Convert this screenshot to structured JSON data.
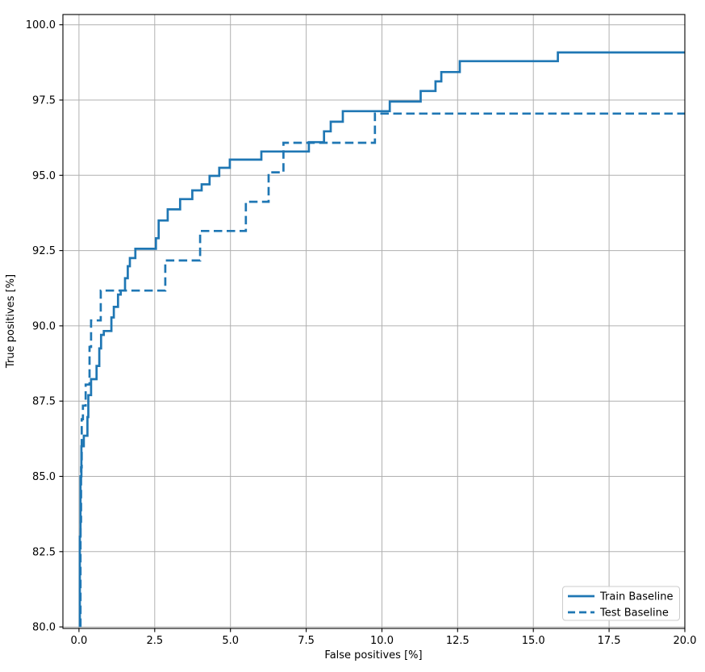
{
  "chart_data": {
    "type": "line",
    "subtype": "step_roc_curve",
    "title": "",
    "xlabel": "False positives [%]",
    "ylabel": "True positives [%]",
    "grid": true,
    "legend_position": "lower right",
    "axis": {
      "xlim": [
        -0.53,
        20.0
      ],
      "ylim": [
        79.95,
        100.34
      ],
      "x_ticks": [
        0.0,
        2.5,
        5.0,
        7.5,
        10.0,
        12.5,
        15.0,
        17.5,
        20.0
      ],
      "x_tick_labels": [
        "0.0",
        "2.5",
        "5.0",
        "7.5",
        "10.0",
        "12.5",
        "15.0",
        "17.5",
        "20.0"
      ],
      "y_ticks": [
        80.0,
        82.5,
        85.0,
        87.5,
        90.0,
        92.5,
        95.0,
        97.5,
        100.0
      ],
      "y_tick_labels": [
        "80.0",
        "82.5",
        "85.0",
        "87.5",
        "90.0",
        "92.5",
        "95.0",
        "97.5",
        "100.0"
      ]
    },
    "colors": {
      "line": "#1f77b4",
      "grid": "#b0b0b0",
      "spine": "#000000",
      "legend_border": "#cccccc",
      "background": "#ffffff"
    },
    "series": [
      {
        "name": "Train Baseline",
        "style": "solid",
        "points": [
          [
            0.03,
            80.0
          ],
          [
            0.03,
            83.0
          ],
          [
            0.05,
            83.0
          ],
          [
            0.05,
            85.0
          ],
          [
            0.08,
            85.0
          ],
          [
            0.08,
            86.0
          ],
          [
            0.16,
            86.0
          ],
          [
            0.16,
            86.35
          ],
          [
            0.28,
            86.35
          ],
          [
            0.28,
            86.97
          ],
          [
            0.31,
            86.97
          ],
          [
            0.31,
            87.7
          ],
          [
            0.4,
            87.7
          ],
          [
            0.4,
            88.23
          ],
          [
            0.58,
            88.23
          ],
          [
            0.58,
            88.67
          ],
          [
            0.67,
            88.67
          ],
          [
            0.67,
            89.25
          ],
          [
            0.73,
            89.25
          ],
          [
            0.73,
            89.7
          ],
          [
            0.82,
            89.7
          ],
          [
            0.82,
            89.83
          ],
          [
            1.07,
            89.83
          ],
          [
            1.07,
            90.28
          ],
          [
            1.15,
            90.28
          ],
          [
            1.15,
            90.63
          ],
          [
            1.29,
            90.63
          ],
          [
            1.29,
            91.04
          ],
          [
            1.38,
            91.04
          ],
          [
            1.38,
            91.17
          ],
          [
            1.52,
            91.17
          ],
          [
            1.52,
            91.58
          ],
          [
            1.61,
            91.58
          ],
          [
            1.61,
            91.98
          ],
          [
            1.68,
            91.98
          ],
          [
            1.68,
            92.25
          ],
          [
            1.86,
            92.25
          ],
          [
            1.86,
            92.56
          ],
          [
            2.54,
            92.56
          ],
          [
            2.54,
            92.91
          ],
          [
            2.63,
            92.91
          ],
          [
            2.63,
            93.5
          ],
          [
            2.93,
            93.5
          ],
          [
            2.93,
            93.87
          ],
          [
            3.34,
            93.87
          ],
          [
            3.34,
            94.21
          ],
          [
            3.74,
            94.21
          ],
          [
            3.74,
            94.5
          ],
          [
            4.05,
            94.5
          ],
          [
            4.05,
            94.7
          ],
          [
            4.31,
            94.7
          ],
          [
            4.31,
            94.98
          ],
          [
            4.63,
            94.98
          ],
          [
            4.63,
            95.25
          ],
          [
            4.98,
            95.25
          ],
          [
            4.98,
            95.52
          ],
          [
            6.02,
            95.52
          ],
          [
            6.02,
            95.79
          ],
          [
            7.59,
            95.79
          ],
          [
            7.59,
            96.1
          ],
          [
            8.09,
            96.1
          ],
          [
            8.09,
            96.46
          ],
          [
            8.31,
            96.46
          ],
          [
            8.31,
            96.78
          ],
          [
            8.71,
            96.78
          ],
          [
            8.71,
            97.13
          ],
          [
            10.26,
            97.13
          ],
          [
            10.26,
            97.45
          ],
          [
            11.28,
            97.45
          ],
          [
            11.28,
            97.8
          ],
          [
            11.77,
            97.8
          ],
          [
            11.77,
            98.12
          ],
          [
            11.96,
            98.12
          ],
          [
            11.96,
            98.43
          ],
          [
            12.57,
            98.43
          ],
          [
            12.57,
            98.79
          ],
          [
            15.81,
            98.79
          ],
          [
            15.81,
            99.08
          ],
          [
            20.0,
            99.08
          ]
        ]
      },
      {
        "name": "Test Baseline",
        "style": "dashed",
        "points": [
          [
            0.05,
            80.0
          ],
          [
            0.05,
            83.5
          ],
          [
            0.07,
            83.5
          ],
          [
            0.07,
            85.3
          ],
          [
            0.09,
            85.3
          ],
          [
            0.09,
            86.9
          ],
          [
            0.13,
            86.9
          ],
          [
            0.13,
            87.35
          ],
          [
            0.22,
            87.35
          ],
          [
            0.22,
            88.05
          ],
          [
            0.35,
            88.05
          ],
          [
            0.35,
            89.3
          ],
          [
            0.4,
            89.3
          ],
          [
            0.4,
            90.18
          ],
          [
            0.72,
            90.18
          ],
          [
            0.72,
            91.17
          ],
          [
            2.85,
            91.17
          ],
          [
            2.85,
            92.17
          ],
          [
            4.0,
            92.17
          ],
          [
            4.0,
            93.15
          ],
          [
            5.51,
            93.15
          ],
          [
            5.51,
            94.12
          ],
          [
            6.26,
            94.12
          ],
          [
            6.26,
            95.1
          ],
          [
            6.75,
            95.1
          ],
          [
            6.75,
            96.08
          ],
          [
            9.77,
            96.08
          ],
          [
            9.77,
            97.05
          ],
          [
            20.0,
            97.05
          ]
        ]
      }
    ]
  },
  "legend": {
    "items": [
      {
        "label": "Train Baseline",
        "style": "solid"
      },
      {
        "label": "Test Baseline",
        "style": "dashed"
      }
    ]
  }
}
